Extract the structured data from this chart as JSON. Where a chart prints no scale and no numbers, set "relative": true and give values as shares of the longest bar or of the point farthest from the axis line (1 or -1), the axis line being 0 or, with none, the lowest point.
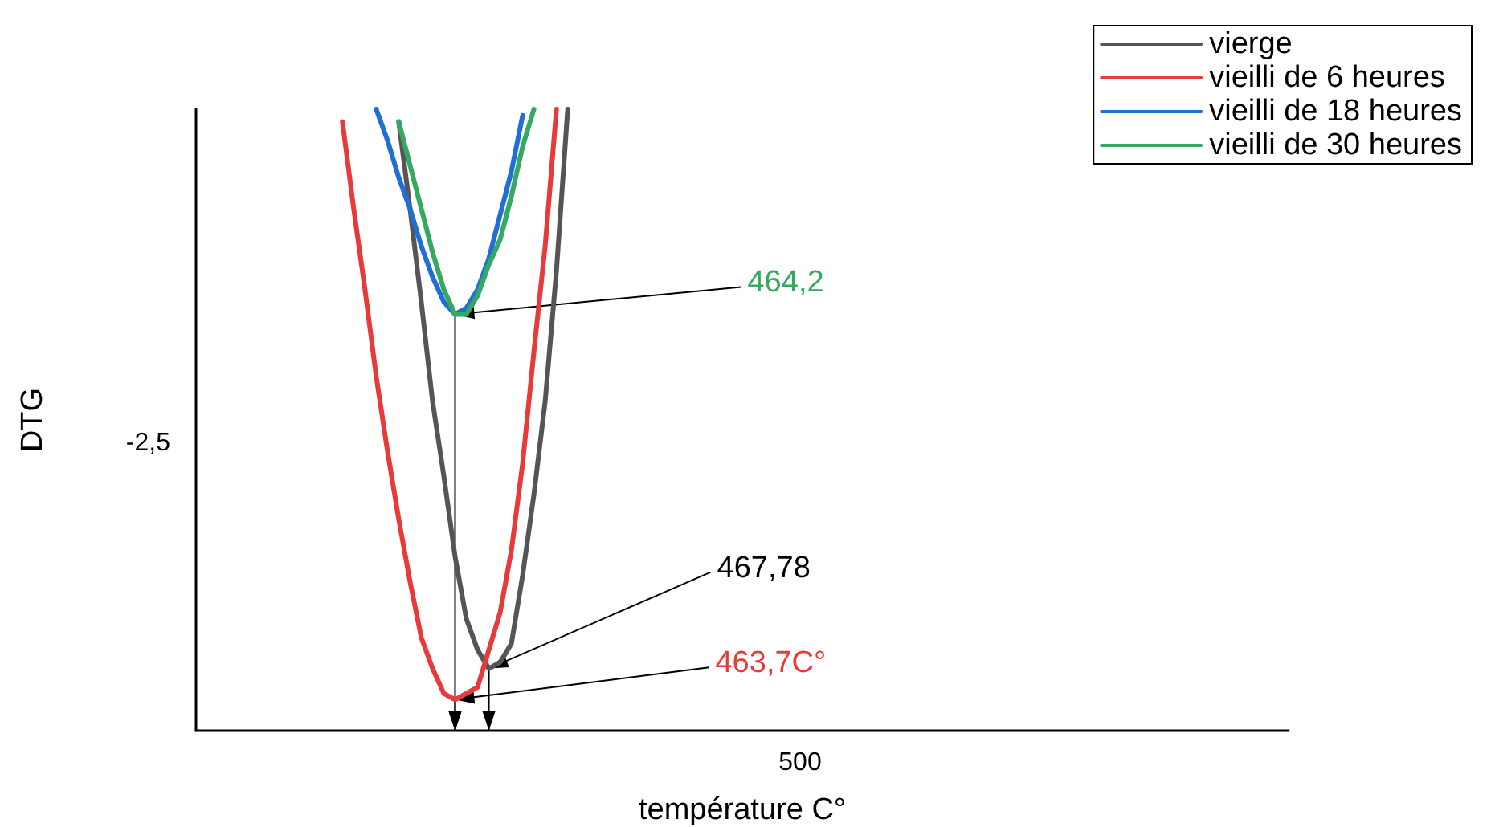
{
  "chart_data": {
    "type": "line",
    "xlabel": "température C°",
    "ylabel": "DTG",
    "relative": true,
    "legend": "top right",
    "marker": "none",
    "line_style": "solid",
    "categories": [
      null,
      null,
      null,
      null,
      null,
      null,
      null,
      null,
      null,
      null,
      null,
      null,
      null,
      null,
      null,
      null,
      null,
      null,
      null,
      null,
      null,
      null,
      null,
      null,
      null,
      null,
      null,
      null,
      null,
      null,
      null,
      null,
      null,
      null,
      null,
      null,
      null,
      null,
      null,
      null,
      null,
      null,
      null,
      null,
      null,
      null,
      null,
      null,
      null,
      null,
      null,
      null,
      null,
      null,
      null,
      null,
      null,
      null,
      null,
      null,
      null,
      null,
      null,
      null,
      null,
      null,
      null,
      null,
      null,
      null,
      null,
      null,
      null,
      null,
      null,
      null,
      null,
      null,
      null,
      null,
      null,
      null,
      null,
      null,
      null,
      null,
      null,
      null,
      null,
      null,
      null,
      null,
      null,
      null,
      null,
      null,
      null,
      null
    ],
    "series": [
      {
        "name": "vierge",
        "color": "#555555",
        "values": [
          null,
          null,
          null,
          null,
          null,
          null,
          null,
          null,
          null,
          null,
          null,
          null,
          null,
          null,
          null,
          null,
          null,
          null,
          0.98,
          0.84,
          0.69,
          0.53,
          0.41,
          0.28,
          0.18,
          0.13,
          0.1,
          0.11,
          0.14,
          0.25,
          0.38,
          0.53,
          0.74,
          1.0,
          null,
          null,
          null,
          null,
          null,
          null,
          null,
          null,
          null,
          null,
          null,
          null,
          null,
          null,
          null,
          null,
          null,
          null,
          null,
          null,
          null,
          null,
          null,
          null,
          null,
          null,
          null,
          null,
          null,
          null,
          null,
          null,
          null,
          null,
          null,
          null,
          null,
          null,
          null,
          null,
          null,
          null,
          null,
          null,
          null,
          null,
          null,
          null,
          null,
          null,
          null,
          null,
          null,
          null,
          null,
          null,
          null,
          null,
          null,
          null,
          null,
          null,
          null,
          null
        ]
      },
      {
        "name": "vieilli de 6 heures",
        "color": "#e8393b",
        "values": [
          null,
          null,
          null,
          null,
          null,
          null,
          null,
          null,
          null,
          null,
          null,
          null,
          null,
          0.98,
          0.84,
          0.71,
          0.57,
          0.45,
          0.34,
          0.24,
          0.15,
          0.1,
          0.06,
          0.05,
          0.06,
          0.07,
          0.13,
          0.19,
          0.29,
          0.43,
          0.61,
          0.78,
          1.0,
          null,
          null,
          null,
          null,
          null,
          null,
          null,
          null,
          null,
          null,
          null,
          null,
          null,
          null,
          null,
          null,
          null,
          null,
          null,
          null,
          null,
          null,
          null,
          null,
          null,
          null,
          null,
          null,
          null,
          null,
          null,
          null,
          null,
          null,
          null,
          null,
          null,
          null,
          null,
          null,
          null,
          null,
          null,
          null,
          null,
          null,
          null,
          null,
          null,
          null,
          null,
          null,
          null,
          null,
          null,
          null,
          null,
          null,
          null,
          null,
          null,
          null,
          null,
          null,
          null
        ]
      },
      {
        "name": "vieilli de 18 heures",
        "color": "#1f6fd6",
        "values": [
          null,
          null,
          null,
          null,
          null,
          null,
          null,
          null,
          null,
          null,
          null,
          null,
          null,
          null,
          null,
          null,
          1.0,
          0.95,
          0.89,
          0.84,
          0.78,
          0.73,
          0.69,
          0.67,
          0.68,
          0.71,
          0.76,
          0.83,
          0.9,
          0.99,
          null,
          null,
          null,
          null,
          null,
          null,
          null,
          null,
          null,
          null,
          null,
          null,
          null,
          null,
          null,
          null,
          null,
          null,
          null,
          null,
          null,
          null,
          null,
          null,
          null,
          null,
          null,
          null,
          null,
          null,
          null,
          null,
          null,
          null,
          null,
          null,
          null,
          null,
          null,
          null,
          null,
          null,
          null,
          null,
          null,
          null,
          null,
          null,
          null,
          null,
          null,
          null,
          null,
          null,
          null,
          null,
          null,
          null,
          null,
          null,
          null,
          null,
          null,
          null,
          null,
          null,
          null,
          null
        ]
      },
      {
        "name": "vieilli de 30 heures",
        "color": "#35a862",
        "values": [
          null,
          null,
          null,
          null,
          null,
          null,
          null,
          null,
          null,
          null,
          null,
          null,
          null,
          null,
          null,
          null,
          null,
          null,
          0.98,
          0.91,
          0.84,
          0.77,
          0.71,
          0.67,
          0.67,
          0.7,
          0.75,
          0.79,
          0.86,
          0.94,
          1.0,
          null,
          null,
          null,
          null,
          null,
          null,
          null,
          null,
          null,
          null,
          null,
          null,
          null,
          null,
          null,
          null,
          null,
          null,
          null,
          null,
          null,
          null,
          null,
          null,
          null,
          null,
          null,
          null,
          null,
          null,
          null,
          null,
          null,
          null,
          null,
          null,
          null,
          null,
          null,
          null,
          null,
          null,
          null,
          null,
          null,
          null,
          null,
          null,
          null,
          null,
          null,
          null,
          null,
          null,
          null,
          null,
          null,
          null,
          null,
          null,
          null,
          null,
          null,
          null,
          null,
          null,
          null
        ]
      }
    ],
    "annotations": [
      "464,2",
      "467,78",
      "463,7C°",
      "-2,5",
      "500"
    ]
  }
}
